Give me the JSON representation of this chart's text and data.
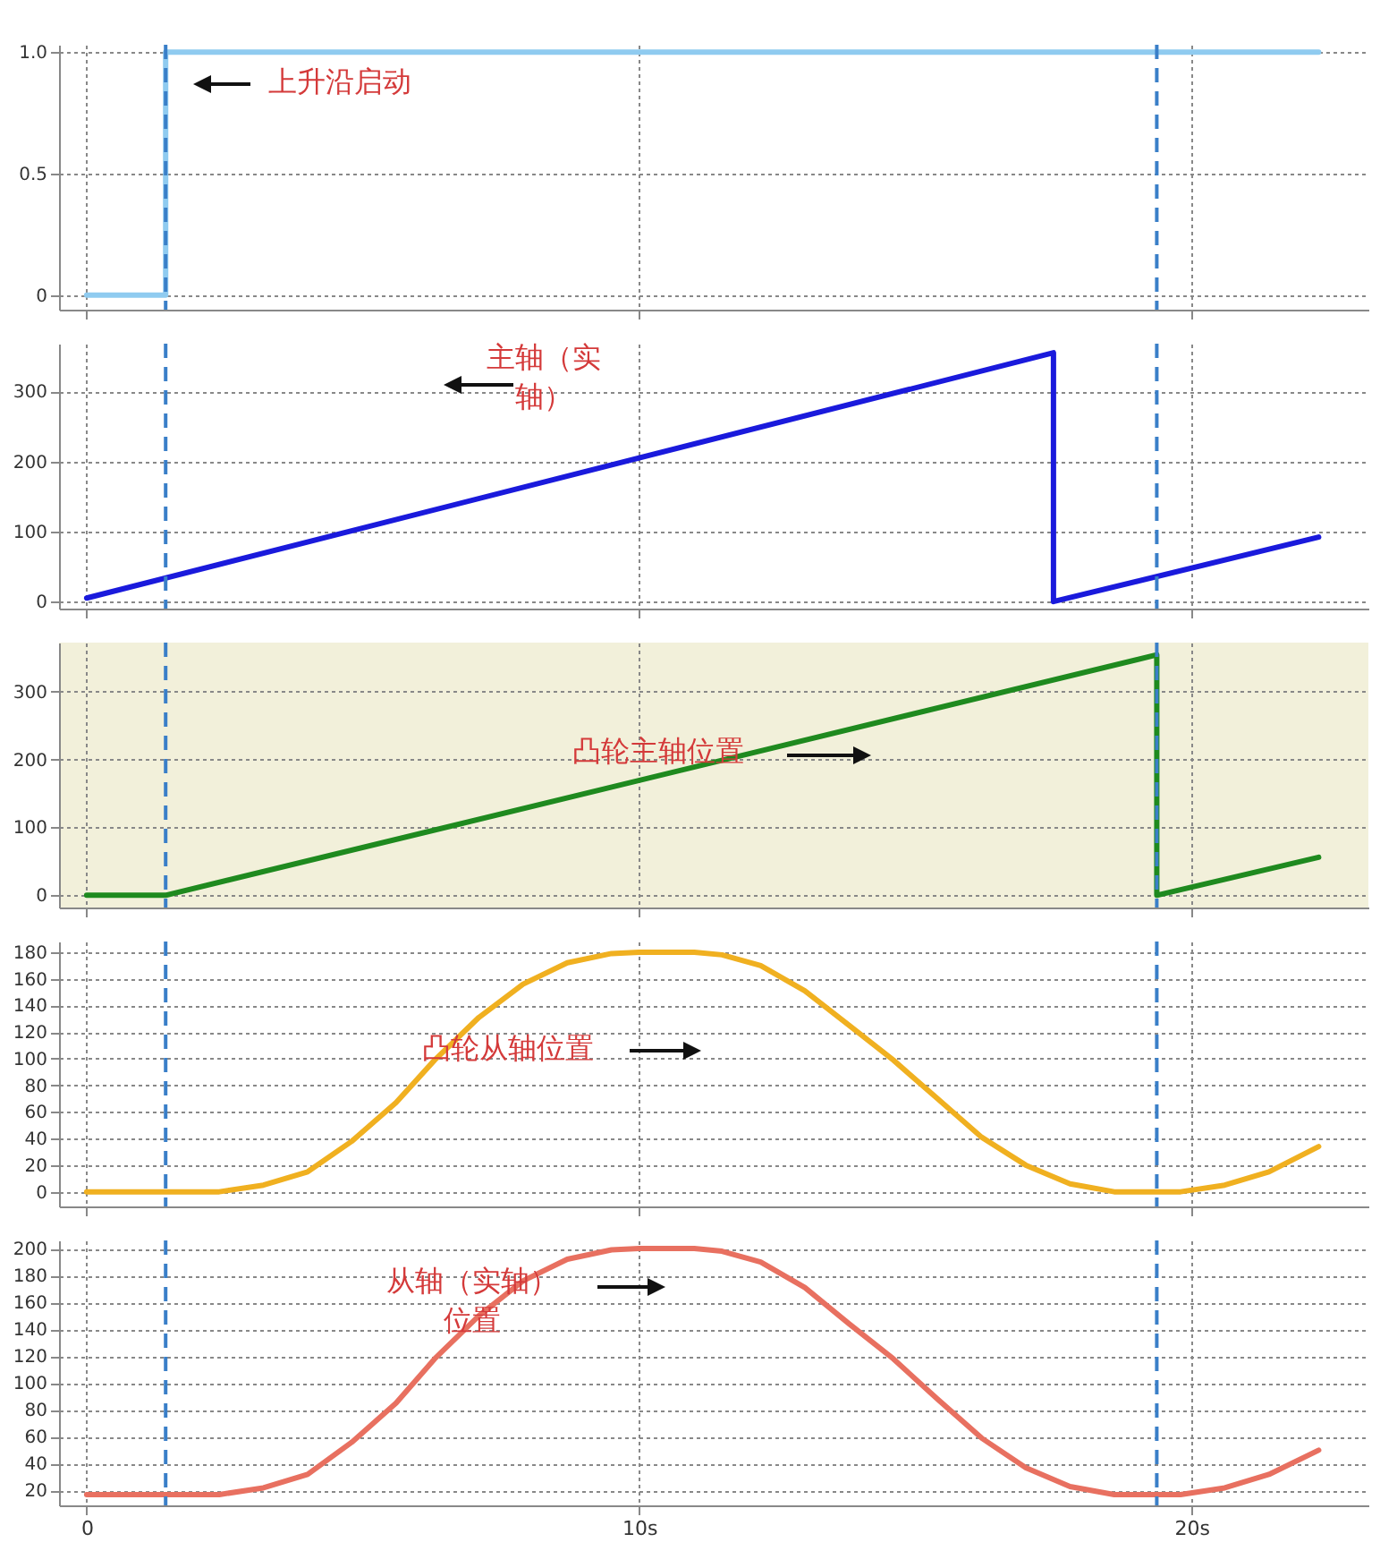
{
  "chart_data": [
    {
      "type": "step",
      "x": [
        0,
        1.43,
        22.3
      ],
      "series": [
        {
          "color": "#8fcbf0",
          "values": [
            0,
            1,
            1
          ]
        }
      ],
      "xlim": [
        -0.5,
        23.2
      ],
      "xticks": [
        0,
        10,
        20
      ],
      "ylim": [
        -0.06,
        1.03
      ],
      "yticks": [
        0,
        0.5,
        {
          "value": 1,
          "label": "1.0"
        }
      ],
      "grid": true,
      "tick_labels": "y",
      "annotations": [
        "上升沿启动"
      ],
      "ref_lines": [
        {
          "axis": "x",
          "value": 1.43,
          "color": "#3a7fc8",
          "line_style": "dashed"
        },
        {
          "axis": "x",
          "value": 19.37,
          "color": "#3a7fc8",
          "line_style": "dashed"
        }
      ]
    },
    {
      "type": "line",
      "x": [
        0,
        17.5,
        17.5,
        22.3
      ],
      "series": [
        {
          "color": "#1a1adc",
          "values": [
            5,
            355,
            0,
            92
          ]
        }
      ],
      "xlim": [
        -0.5,
        23.2
      ],
      "xticks": [
        0,
        10,
        20
      ],
      "ylim": [
        -10,
        368
      ],
      "yticks": [
        0,
        100,
        200,
        300
      ],
      "grid": true,
      "tick_labels": "y",
      "annotations": [
        "主轴（实轴）"
      ],
      "ref_lines": [
        {
          "axis": "x",
          "value": 1.43,
          "color": "#3a7fc8",
          "line_style": "dashed"
        },
        {
          "axis": "x",
          "value": 19.37,
          "color": "#3a7fc8",
          "line_style": "dashed"
        }
      ]
    },
    {
      "type": "line",
      "x": [
        0,
        1.43,
        19.37,
        19.37,
        22.3
      ],
      "series": [
        {
          "color": "#1f8a1f",
          "values": [
            0,
            0,
            354,
            0,
            56
          ]
        }
      ],
      "xlim": [
        -0.5,
        23.2
      ],
      "xticks": [
        0,
        10,
        20
      ],
      "ylim": [
        -18,
        372
      ],
      "yticks": [
        0,
        100,
        200,
        300
      ],
      "grid": true,
      "tick_labels": "y",
      "annotations": [
        "凸轮主轴位置"
      ],
      "ref_lines": [
        {
          "axis": "x",
          "value": 1.43,
          "color": "#3a7fc8",
          "line_style": "dashed"
        },
        {
          "axis": "x",
          "value": 19.37,
          "color": "#3a7fc8",
          "line_style": "dashed"
        }
      ]
    },
    {
      "type": "line",
      "x": [
        0,
        2.4,
        3.2,
        4.0,
        4.8,
        5.6,
        6.3,
        7.1,
        7.9,
        8.7,
        9.5,
        10.0,
        11.0,
        11.5,
        12.2,
        13.0,
        13.8,
        14.6,
        15.4,
        16.2,
        17.0,
        17.8,
        18.6,
        19.8,
        20.6,
        21.4,
        22.3
      ],
      "series": [
        {
          "color": "#f0b020",
          "values": [
            0,
            0,
            5,
            15,
            38,
            67,
            99,
            131,
            156,
            172,
            179,
            180,
            180,
            178,
            170,
            151,
            125,
            99,
            70,
            41,
            20,
            6,
            0,
            0,
            5,
            15,
            34
          ]
        }
      ],
      "xlim": [
        -0.5,
        23.2
      ],
      "xticks": [
        0,
        10,
        20
      ],
      "ylim": [
        -11,
        188
      ],
      "yticks": [
        0,
        20,
        40,
        60,
        80,
        100,
        120,
        140,
        160,
        180
      ],
      "grid": true,
      "tick_labels": "y",
      "annotations": [
        "凸轮从轴位置"
      ],
      "ref_lines": [
        {
          "axis": "x",
          "value": 1.43,
          "color": "#3a7fc8",
          "line_style": "dashed"
        },
        {
          "axis": "x",
          "value": 19.37,
          "color": "#3a7fc8",
          "line_style": "dashed"
        }
      ]
    },
    {
      "type": "line",
      "x": [
        0,
        2.4,
        3.2,
        4.0,
        4.8,
        5.6,
        6.3,
        7.1,
        7.9,
        8.7,
        9.5,
        10.0,
        11.0,
        11.5,
        12.2,
        13.0,
        13.8,
        14.6,
        15.4,
        16.2,
        17.0,
        17.8,
        18.6,
        19.8,
        20.6,
        21.4,
        22.3
      ],
      "series": [
        {
          "color": "#e87060",
          "values": [
            17,
            17,
            22,
            32,
            56,
            85,
            118,
            150,
            176,
            192,
            199,
            200,
            200,
            198,
            190,
            171,
            144,
            118,
            88,
            59,
            37,
            23,
            17,
            17,
            22,
            32,
            50
          ]
        }
      ],
      "xlim": [
        -0.5,
        23.2
      ],
      "xticks": [
        0,
        {
          "value": 10,
          "label": "10s"
        },
        {
          "value": 20,
          "label": "20s"
        }
      ],
      "ylim": [
        9,
        206
      ],
      "yticks": [
        20,
        40,
        60,
        80,
        100,
        120,
        140,
        160,
        180,
        200
      ],
      "grid": true,
      "annotations": [
        "从轴（实轴）位置"
      ],
      "ref_lines": [
        {
          "axis": "x",
          "value": 1.43,
          "color": "#3a7fc8",
          "line_style": "dashed"
        },
        {
          "axis": "x",
          "value": 19.37,
          "color": "#3a7fc8",
          "line_style": "dashed"
        }
      ]
    }
  ]
}
